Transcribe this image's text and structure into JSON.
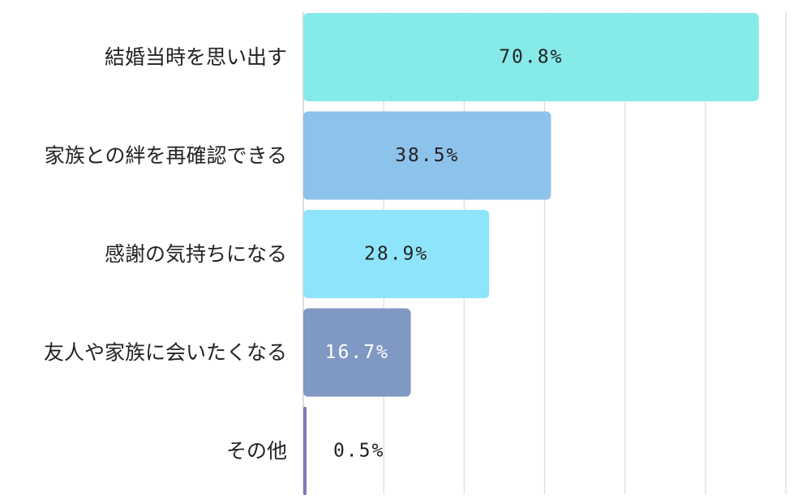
{
  "chart_data": {
    "type": "bar",
    "orientation": "horizontal",
    "categories": [
      "結婚当時を思い出す",
      "家族との絆を再確認できる",
      "感謝の気持ちになる",
      "友人や家族に会いたくなる",
      "その他"
    ],
    "values": [
      70.8,
      38.5,
      28.9,
      16.7,
      0.5
    ],
    "value_labels": [
      "70.8%",
      "38.5%",
      "28.9%",
      "16.7%",
      "0.5%"
    ],
    "unit": "%",
    "xlim": [
      0,
      75
    ],
    "grid_step": 12.5,
    "grid": true,
    "legend": "none",
    "colors": [
      "#85EAE8",
      "#8DC2EB",
      "#8EE5FB",
      "#7F98C4",
      "#7C7CB4"
    ],
    "value_label_colors": [
      "#222222",
      "#222222",
      "#222222",
      "#ffffff",
      "#222222"
    ],
    "title": "",
    "xlabel": "",
    "ylabel": ""
  }
}
